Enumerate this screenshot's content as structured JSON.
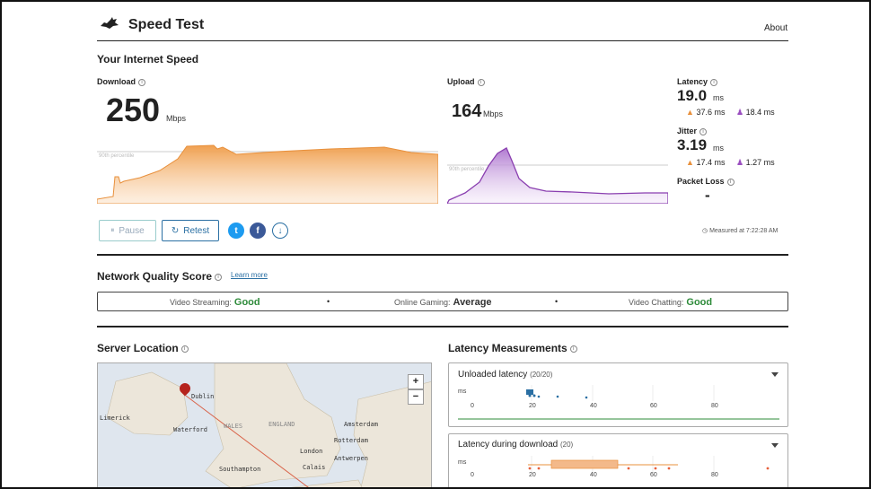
{
  "header": {
    "title": "Speed Test",
    "about": "About"
  },
  "speed": {
    "section_title": "Your Internet Speed",
    "download": {
      "label": "Download",
      "value": "250",
      "unit": "Mbps",
      "percentile_label": "90th percentile"
    },
    "upload": {
      "label": "Upload",
      "value": "164",
      "unit": "Mbps",
      "percentile_label": "90th percentile"
    },
    "latency": {
      "label": "Latency",
      "value": "19.0",
      "unit": "ms",
      "up": "37.6 ms",
      "down": "18.4 ms"
    },
    "jitter": {
      "label": "Jitter",
      "value": "3.19",
      "unit": "ms",
      "up": "17.4 ms",
      "down": "1.27 ms"
    },
    "packet_loss": {
      "label": "Packet Loss",
      "value": "-"
    },
    "pause_label": "Pause",
    "retest_label": "Retest",
    "measured": "Measured at 7:22:28 AM"
  },
  "quality": {
    "title": "Network Quality Score",
    "learn_more": "Learn more",
    "items": [
      {
        "label": "Video Streaming:",
        "value": "Good"
      },
      {
        "label": "Online Gaming:",
        "value": "Average"
      },
      {
        "label": "Video Chatting:",
        "value": "Good"
      }
    ]
  },
  "server": {
    "title": "Server Location",
    "cities": [
      "Dublin",
      "Limerick",
      "Waterford",
      "WALES",
      "ENGLAND",
      "Amsterdam",
      "Rotterdam",
      "London",
      "Antwerpen",
      "Southampton",
      "Calais"
    ],
    "zoom_in": "+",
    "zoom_out": "−"
  },
  "latency_measurements": {
    "title": "Latency Measurements",
    "unloaded": {
      "label": "Unloaded latency",
      "count": "(20/20)"
    },
    "download": {
      "label": "Latency during download",
      "count": "(20)"
    },
    "axis_unit": "ms",
    "ticks": [
      "0",
      "20",
      "40",
      "60",
      "80"
    ]
  },
  "colors": {
    "accent": "#2a6fa3",
    "download": "#f0a050",
    "upload": "#9b4fc0",
    "good": "#2e8b3a"
  }
}
